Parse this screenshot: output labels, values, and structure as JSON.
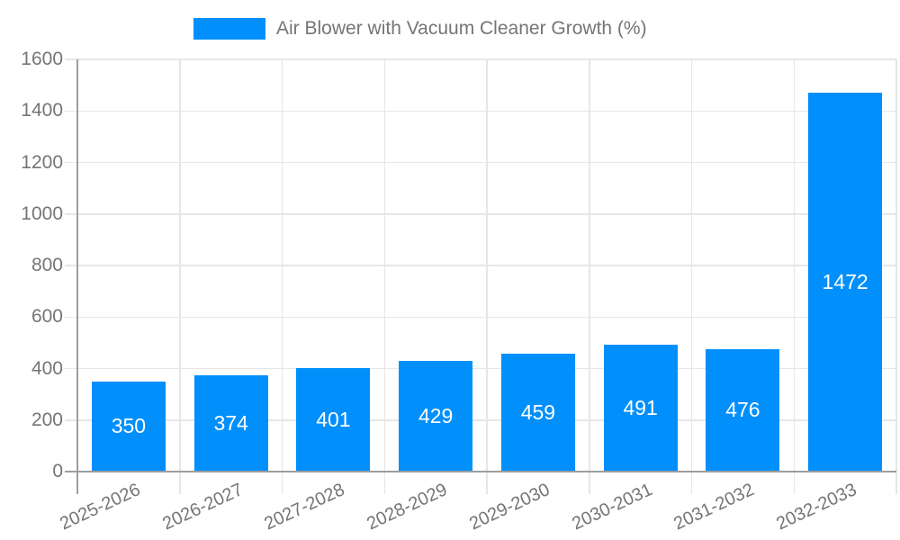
{
  "legend": {
    "label": "Air Blower with Vacuum Cleaner Growth (%)",
    "position": "top"
  },
  "colors": {
    "bar": "#008FFB",
    "grid": "#e6e6e6",
    "axis": "#9e9e9e",
    "label_text": "#757575",
    "bar_label_text": "#ffffff",
    "background": "#ffffff"
  },
  "chart_data": {
    "type": "bar",
    "title": "Air Blower with Vacuum Cleaner Growth (%)",
    "categories": [
      "2025-2026",
      "2026-2027",
      "2027-2028",
      "2028-2029",
      "2029-2030",
      "2030-2031",
      "2031-2032",
      "2032-2033"
    ],
    "values": [
      350,
      374,
      401,
      429,
      459,
      491,
      476,
      1472
    ],
    "series": [
      {
        "name": "Air Blower with Vacuum Cleaner Growth (%)",
        "values": [
          350,
          374,
          401,
          429,
          459,
          491,
          476,
          1472
        ]
      }
    ],
    "bar_value_labels": [
      "350",
      "374",
      "401",
      "429",
      "459",
      "491",
      "476",
      "1472"
    ],
    "ytick_labels": [
      "0",
      "200",
      "400",
      "600",
      "800",
      "1000",
      "1200",
      "1400",
      "1600"
    ],
    "yticks": [
      0,
      200,
      400,
      600,
      800,
      1000,
      1200,
      1400,
      1600
    ],
    "ylim": [
      0,
      1600
    ],
    "xlabel": "",
    "ylabel": "",
    "grid": true,
    "legend_position": "top",
    "x_label_rotation_deg": -25
  }
}
